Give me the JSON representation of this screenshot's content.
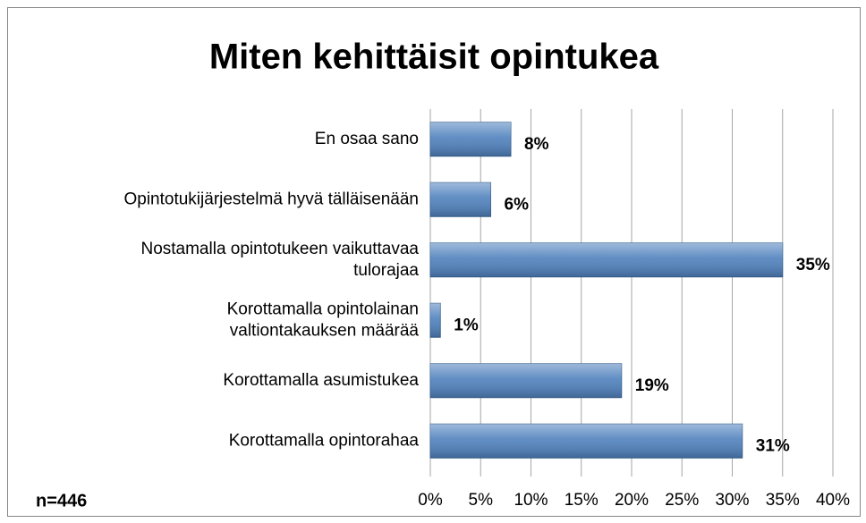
{
  "chart_data": {
    "type": "bar",
    "orientation": "horizontal",
    "title": "Miten kehittäisit opintukea",
    "annotation": "n=446",
    "categories": [
      "En osaa sano",
      "Opintotukijärjestelmä hyvä tälläisenään",
      "Nostamalla opintotukeen vaikuttavaa tulorajaa",
      "Korottamalla opintolainan valtiontakauksen määrää",
      "Korottamalla asumistukea",
      "Korottamalla opintorahaa"
    ],
    "values": [
      8,
      6,
      35,
      1,
      19,
      31
    ],
    "value_labels": [
      "8%",
      "6%",
      "35%",
      "1%",
      "19%",
      "31%"
    ],
    "color": "#4f81bd",
    "xlim": [
      0,
      40
    ],
    "xticks": [
      {
        "value": 0,
        "label": "0%"
      },
      {
        "value": 5,
        "label": "5%"
      },
      {
        "value": 10,
        "label": "10%"
      },
      {
        "value": 15,
        "label": "15%"
      },
      {
        "value": 20,
        "label": "20%"
      },
      {
        "value": 25,
        "label": "25%"
      },
      {
        "value": 30,
        "label": "30%"
      },
      {
        "value": 35,
        "label": "35%"
      },
      {
        "value": 40,
        "label": "40%"
      }
    ],
    "grid": true
  }
}
